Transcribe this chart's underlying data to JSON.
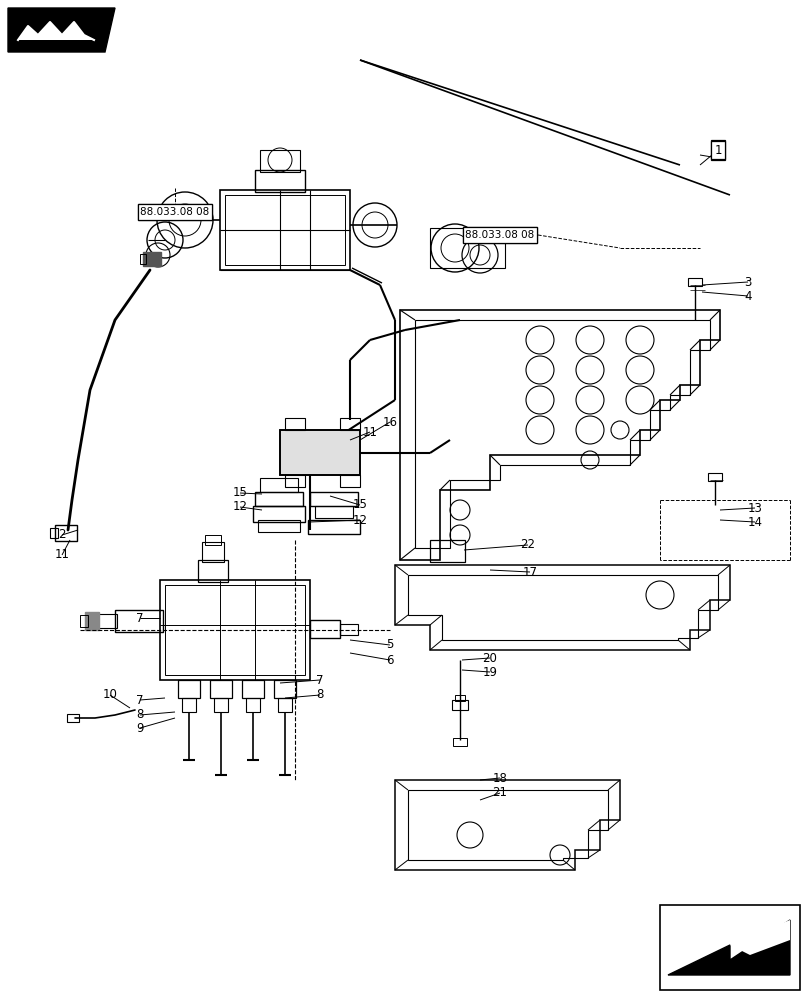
{
  "bg_color": "#ffffff",
  "lc": "#000000",
  "fig_width": 8.12,
  "fig_height": 10.0,
  "dpi": 100,
  "xlim": [
    0,
    812
  ],
  "ylim": [
    0,
    1000
  ]
}
